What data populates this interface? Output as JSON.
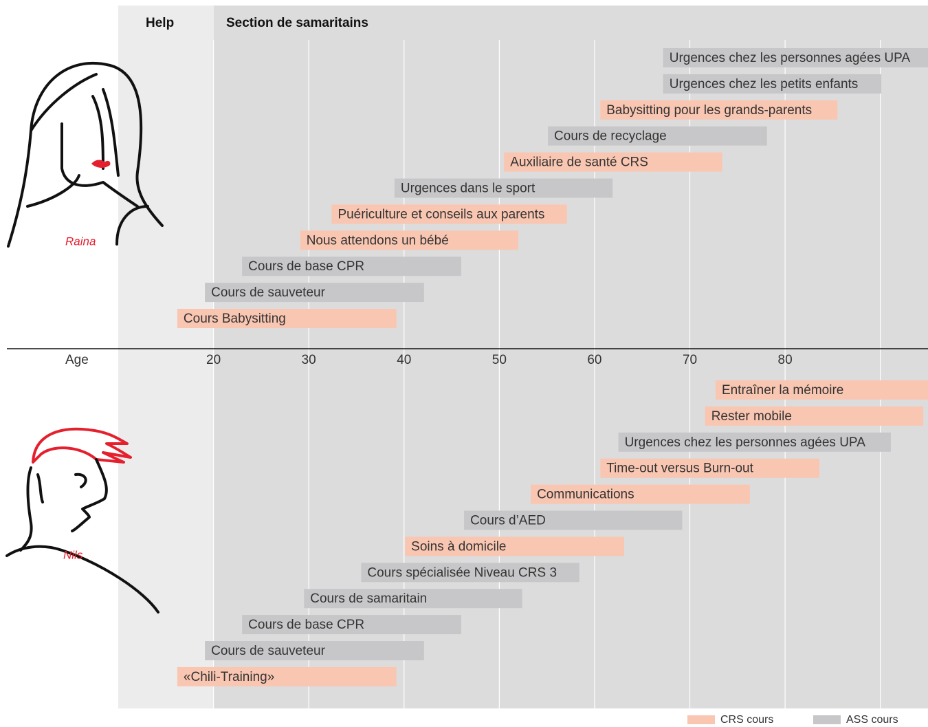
{
  "chart_data": {
    "type": "range-bar",
    "headers": [
      "Help",
      "Section de samaritains"
    ],
    "xlabel": "Age",
    "xlim": [
      10,
      95
    ],
    "xticks": [
      20,
      30,
      40,
      50,
      60,
      70,
      80
    ],
    "grid_x": [
      20,
      30,
      40,
      50,
      60,
      70,
      80,
      90
    ],
    "series": [
      {
        "name": "CRS cours",
        "color": "#f9c6b2"
      },
      {
        "name": "ASS cours",
        "color": "#c7c7c9"
      }
    ],
    "panels": [
      {
        "name": "Raina",
        "courses": [
          {
            "label": "Urgences chez les personnes agées UPA",
            "series": 1,
            "start": 67.2,
            "end": 95
          },
          {
            "label": "Urgences chez les petits enfants",
            "series": 1,
            "start": 67.2,
            "end": 90.1
          },
          {
            "label": "Babysitting pour les grands-parents",
            "series": 0,
            "start": 60.6,
            "end": 85.5
          },
          {
            "label": "Cours de recyclage",
            "series": 1,
            "start": 55.1,
            "end": 78.1
          },
          {
            "label": "Auxiliaire de santé CRS",
            "series": 0,
            "start": 50.5,
            "end": 73.4
          },
          {
            "label": "Urgences dans le sport",
            "series": 1,
            "start": 39.0,
            "end": 61.9
          },
          {
            "label": "Puériculture et conseils aux parents",
            "series": 0,
            "start": 32.4,
            "end": 57.1
          },
          {
            "label": "Nous attendons un bébé",
            "series": 0,
            "start": 29.1,
            "end": 52.0
          },
          {
            "label": "Cours de base CPR",
            "series": 1,
            "start": 23.0,
            "end": 46.0
          },
          {
            "label": "Cours de sauveteur",
            "series": 1,
            "start": 19.1,
            "end": 42.1
          },
          {
            "label": "Cours Babysitting",
            "series": 0,
            "start": 16.2,
            "end": 39.2
          }
        ]
      },
      {
        "name": "Nils",
        "courses": [
          {
            "label": "Entraîner la mémoire",
            "series": 0,
            "start": 72.7,
            "end": 95
          },
          {
            "label": "Rester mobile",
            "series": 0,
            "start": 71.6,
            "end": 94.5
          },
          {
            "label": "Urgences chez les personnes agées UPA",
            "series": 1,
            "start": 62.5,
            "end": 91.1
          },
          {
            "label": "Time-out versus Burn-out",
            "series": 0,
            "start": 60.6,
            "end": 83.6
          },
          {
            "label": "Communications",
            "series": 0,
            "start": 53.3,
            "end": 76.3
          },
          {
            "label": "Cours d’AED",
            "series": 1,
            "start": 46.3,
            "end": 69.2
          },
          {
            "label": "Soins à domicile",
            "series": 0,
            "start": 40.1,
            "end": 63.1
          },
          {
            "label": "Cours spécialisée Niveau CRS 3",
            "series": 1,
            "start": 35.5,
            "end": 58.4
          },
          {
            "label": "Cours de samaritain",
            "series": 1,
            "start": 29.5,
            "end": 52.4
          },
          {
            "label": "Cours de base CPR",
            "series": 1,
            "start": 23.0,
            "end": 46.0
          },
          {
            "label": "Cours de sauveteur",
            "series": 1,
            "start": 19.1,
            "end": 42.1
          },
          {
            "label": "«Chili-Training»",
            "series": 0,
            "start": 16.2,
            "end": 39.2
          }
        ]
      }
    ]
  }
}
